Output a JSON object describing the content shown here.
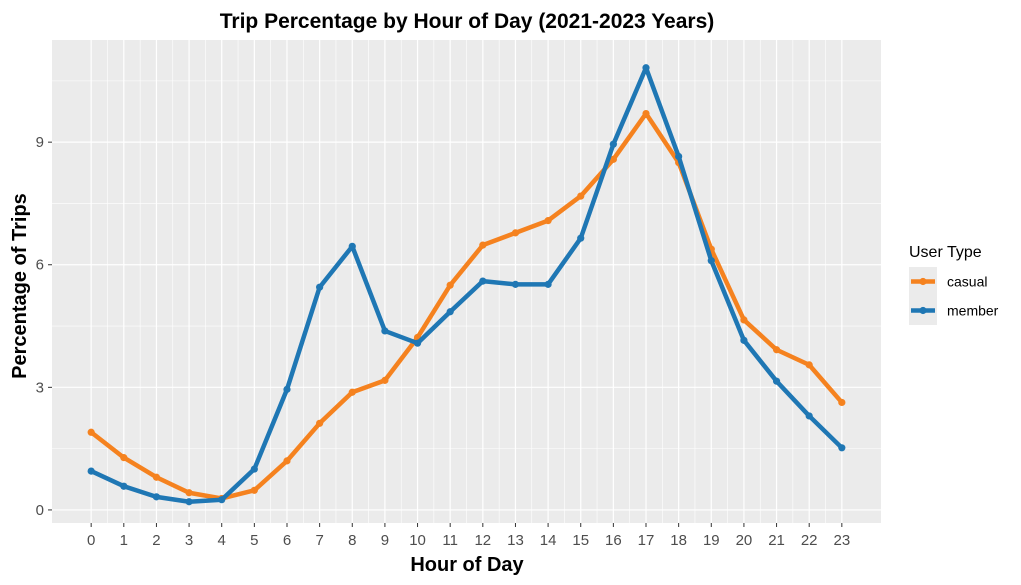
{
  "colors": {
    "casual": "#f5821f",
    "member": "#1f77b4",
    "panel": "#ebebeb",
    "grid": "#ffffff"
  },
  "chart_data": {
    "type": "line",
    "title": "Trip Percentage by Hour of Day (2021-2023 Years)",
    "xlabel": "Hour of Day",
    "ylabel": "Percentage of Trips",
    "x": [
      0,
      1,
      2,
      3,
      4,
      5,
      6,
      7,
      8,
      9,
      10,
      11,
      12,
      13,
      14,
      15,
      16,
      17,
      18,
      19,
      20,
      21,
      22,
      23
    ],
    "x_tick_labels": [
      "0",
      "1",
      "2",
      "3",
      "4",
      "5",
      "6",
      "7",
      "8",
      "9",
      "10",
      "11",
      "12",
      "13",
      "14",
      "15",
      "16",
      "17",
      "18",
      "19",
      "20",
      "21",
      "22",
      "23"
    ],
    "y_ticks": [
      0,
      3,
      6,
      9
    ],
    "y_tick_labels": [
      "0",
      "3",
      "6",
      "9"
    ],
    "xlim": [
      -1.2,
      24.2
    ],
    "ylim": [
      -0.32,
      11.5
    ],
    "grid": true,
    "legend": {
      "title": "User Type",
      "placement": "right"
    },
    "series": [
      {
        "name": "casual",
        "color": "#f5821f",
        "values": [
          1.9,
          1.28,
          0.8,
          0.42,
          0.28,
          0.48,
          1.2,
          2.12,
          2.88,
          3.17,
          4.22,
          5.5,
          6.48,
          6.78,
          7.08,
          7.68,
          8.58,
          9.7,
          8.5,
          6.38,
          4.65,
          3.92,
          3.55,
          2.63
        ]
      },
      {
        "name": "member",
        "color": "#1f77b4",
        "values": [
          0.95,
          0.58,
          0.32,
          0.2,
          0.25,
          1.0,
          2.95,
          5.45,
          6.45,
          4.38,
          4.08,
          4.85,
          5.6,
          5.52,
          5.52,
          6.65,
          8.95,
          10.82,
          8.65,
          6.1,
          4.15,
          3.15,
          2.3,
          1.52
        ]
      }
    ]
  }
}
